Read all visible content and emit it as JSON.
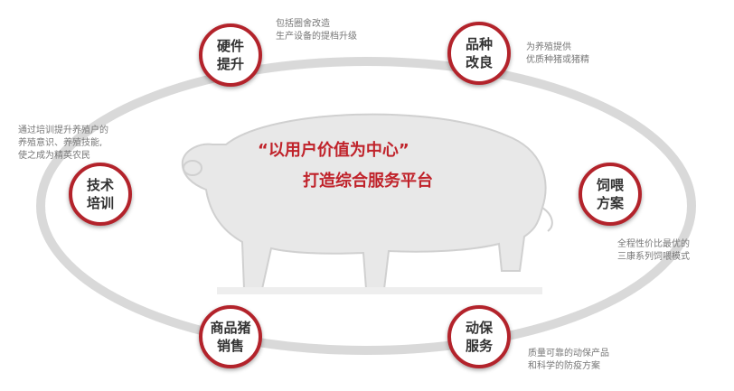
{
  "colors": {
    "accent": "#c0222a",
    "ring": "#b3232b",
    "ellipse": "#d9d9d9",
    "pig": "#e6e6e6",
    "text": "#777777"
  },
  "headline": {
    "line1": "“以用户价值为中心”",
    "line2": "打造综合服务平台"
  },
  "nodes": [
    {
      "id": "hardware",
      "line1": "硬件",
      "line2": "提升",
      "desc": [
        "包括圈舍改造",
        "生产设备的提档升级"
      ]
    },
    {
      "id": "breed",
      "line1": "品种",
      "line2": "改良",
      "desc": [
        "为养殖提供",
        "优质种猪或猪精"
      ]
    },
    {
      "id": "feed",
      "line1": "饲喂",
      "line2": "方案",
      "desc": [
        "全程性价比最优的",
        "三康系列饲喂模式"
      ]
    },
    {
      "id": "vet",
      "line1": "动保",
      "line2": "服务",
      "desc": [
        "质量可靠的动保产品",
        "和科学的防疫方案"
      ]
    },
    {
      "id": "sales",
      "line1": "商品猪",
      "line2": "销售",
      "desc": []
    },
    {
      "id": "training",
      "line1": "技术",
      "line2": "培训",
      "desc": [
        "通过培训提升养殖户的",
        "养殖意识、养殖技能,",
        "使之成为精英农民"
      ]
    }
  ],
  "pig_icon": "pig-silhouette-icon"
}
